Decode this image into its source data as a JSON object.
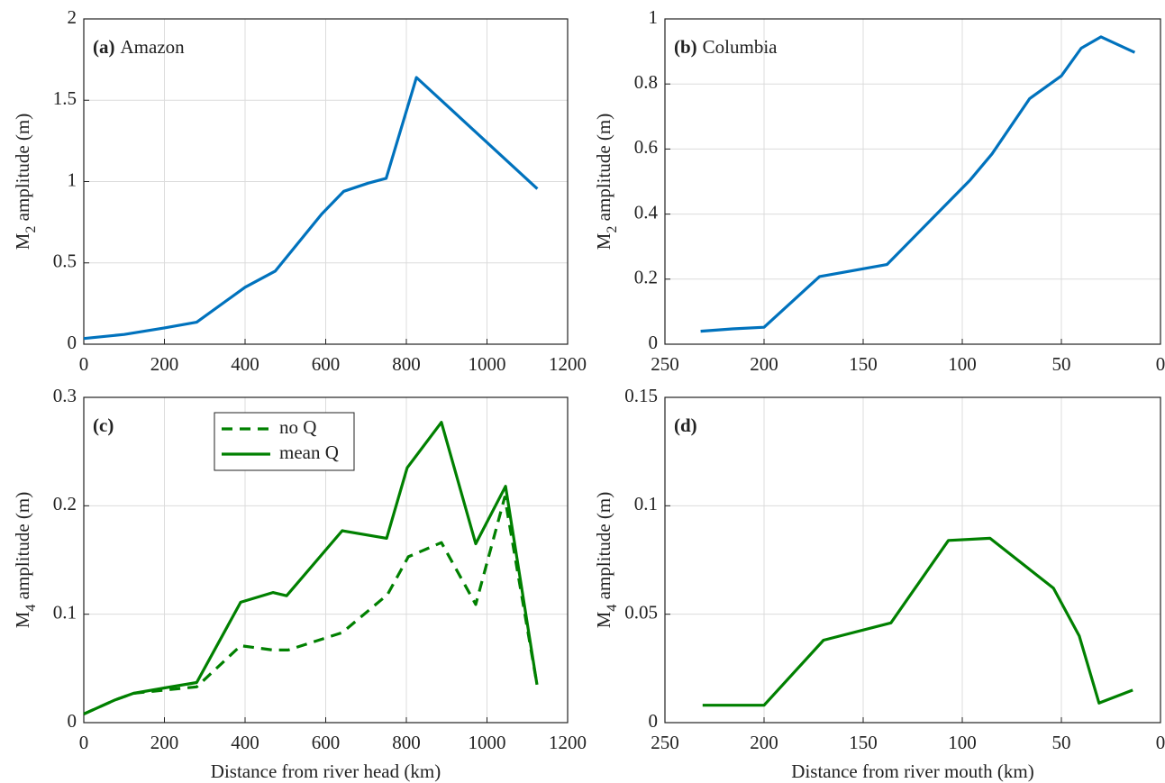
{
  "chart_data": [
    {
      "type": "line",
      "panel_label": "(a)",
      "title": "Amazon",
      "ylabel": [
        "M",
        "2",
        " amplitude (m)"
      ],
      "xlim": [
        0,
        1200
      ],
      "xticks": [
        0,
        200,
        400,
        600,
        800,
        1000,
        1200
      ],
      "ylim": [
        0,
        2
      ],
      "yticks": [
        0,
        0.5,
        1,
        1.5,
        2
      ],
      "grid": true,
      "series": [
        {
          "color": "#0072bd",
          "linestyle": "solid",
          "x": [
            0,
            100,
            200,
            280,
            400,
            475,
            590,
            645,
            705,
            750,
            825,
            1125
          ],
          "values": [
            0.035,
            0.06,
            0.1,
            0.135,
            0.35,
            0.45,
            0.8,
            0.94,
            0.99,
            1.02,
            1.64,
            0.955
          ]
        }
      ]
    },
    {
      "type": "line",
      "panel_label": "(b)",
      "title": "Columbia",
      "ylabel": [
        "M",
        "2",
        " amplitude (m)"
      ],
      "xlim": [
        250,
        0
      ],
      "xticks": [
        250,
        200,
        150,
        100,
        50,
        0
      ],
      "ylim": [
        0,
        1
      ],
      "yticks": [
        0,
        0.2,
        0.4,
        0.6,
        0.8,
        1
      ],
      "grid": true,
      "series": [
        {
          "color": "#0072bd",
          "linestyle": "solid",
          "x": [
            232,
            216,
            200,
            172,
            157,
            138,
            96,
            85,
            66,
            50,
            40,
            30,
            13
          ],
          "values": [
            0.04,
            0.047,
            0.052,
            0.208,
            0.224,
            0.245,
            0.505,
            0.585,
            0.755,
            0.825,
            0.91,
            0.945,
            0.897
          ]
        }
      ]
    },
    {
      "type": "line",
      "panel_label": "(c)",
      "ylabel": [
        "M",
        "4",
        " amplitude (m)"
      ],
      "xlabel": "Distance from river head (km)",
      "xlim": [
        0,
        1200
      ],
      "xticks": [
        0,
        200,
        400,
        600,
        800,
        1000,
        1200
      ],
      "ylim": [
        0,
        0.3
      ],
      "yticks": [
        0,
        0.1,
        0.2,
        0.3
      ],
      "grid": true,
      "legend": "top",
      "series": [
        {
          "name": "no Q",
          "color": "#008000",
          "linestyle": "dashed",
          "x": [
            0,
            78,
            123,
            200,
            280,
            389,
            469,
            507,
            641,
            753,
            805,
            887,
            972,
            1044,
            1124
          ],
          "values": [
            0.008,
            0.021,
            0.027,
            0.03,
            0.033,
            0.071,
            0.067,
            0.067,
            0.083,
            0.118,
            0.153,
            0.166,
            0.109,
            0.208,
            0.035
          ]
        },
        {
          "name": "mean Q",
          "color": "#008000",
          "linestyle": "solid",
          "x": [
            0,
            78,
            123,
            200,
            280,
            389,
            469,
            503,
            641,
            751,
            802,
            887,
            972,
            1046,
            1124
          ],
          "values": [
            0.008,
            0.021,
            0.027,
            0.032,
            0.037,
            0.111,
            0.12,
            0.117,
            0.177,
            0.17,
            0.235,
            0.277,
            0.165,
            0.218,
            0.035
          ]
        }
      ]
    },
    {
      "type": "line",
      "panel_label": "(d)",
      "ylabel": [
        "M",
        "4",
        " amplitude (m)"
      ],
      "xlabel": "Distance from river mouth (km)",
      "xlim": [
        250,
        0
      ],
      "xticks": [
        250,
        200,
        150,
        100,
        50,
        0
      ],
      "ylim": [
        0,
        0.15
      ],
      "yticks": [
        0,
        0.05,
        0.1,
        0.15
      ],
      "grid": true,
      "series": [
        {
          "color": "#008000",
          "linestyle": "solid",
          "x": [
            231,
            200,
            170,
            136,
            107,
            86,
            54,
            41,
            31,
            14
          ],
          "values": [
            0.008,
            0.008,
            0.038,
            0.046,
            0.084,
            0.085,
            0.062,
            0.04,
            0.009,
            0.015
          ]
        }
      ]
    }
  ]
}
